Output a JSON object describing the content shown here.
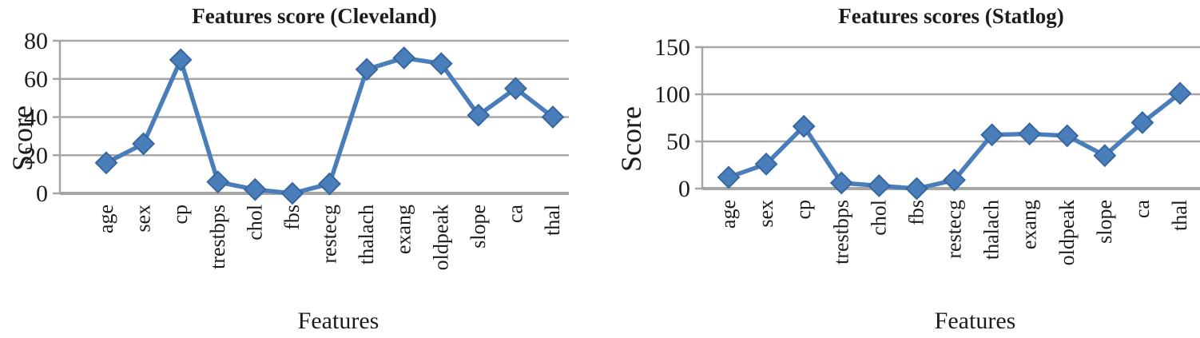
{
  "figure": {
    "background_color": "#ffffff",
    "line_color": "#4A7EBB",
    "marker_fill_color": "#4A7EBB",
    "marker_border_color": "#38669E",
    "gridline_color": "#A6A6A6",
    "axis_color": "#A6A6A6",
    "text_color": "#1c1c1c"
  },
  "chart_data": [
    {
      "type": "line",
      "title": "Features score (Cleveland)",
      "xlabel": "Features",
      "ylabel": "Score",
      "categories": [
        "age",
        "sex",
        "cp",
        "trestbps",
        "chol",
        "fbs",
        "restecg",
        "thalach",
        "exang",
        "oldpeak",
        "slope",
        "ca",
        "thal"
      ],
      "values": [
        16,
        26,
        70,
        6,
        2,
        0,
        5,
        65,
        71,
        68,
        41,
        55,
        40
      ],
      "ylim": [
        0,
        80
      ],
      "yticks": [
        0,
        20,
        40,
        60,
        80
      ],
      "grid": "horizontal",
      "legend": "none",
      "marker": "diamond"
    },
    {
      "type": "line",
      "title": "Features scores (Statlog)",
      "xlabel": "Features",
      "ylabel": "Score",
      "categories": [
        "age",
        "sex",
        "cp",
        "trestbps",
        "chol",
        "fbs",
        "restecg",
        "thalach",
        "exang",
        "oldpeak",
        "slope",
        "ca",
        "thal"
      ],
      "values": [
        12,
        26,
        66,
        6,
        3,
        0,
        9,
        57,
        58,
        56,
        35,
        70,
        101
      ],
      "ylim": [
        0,
        150
      ],
      "yticks": [
        0,
        50,
        100,
        150
      ],
      "grid": "horizontal",
      "legend": "none",
      "marker": "diamond"
    }
  ]
}
